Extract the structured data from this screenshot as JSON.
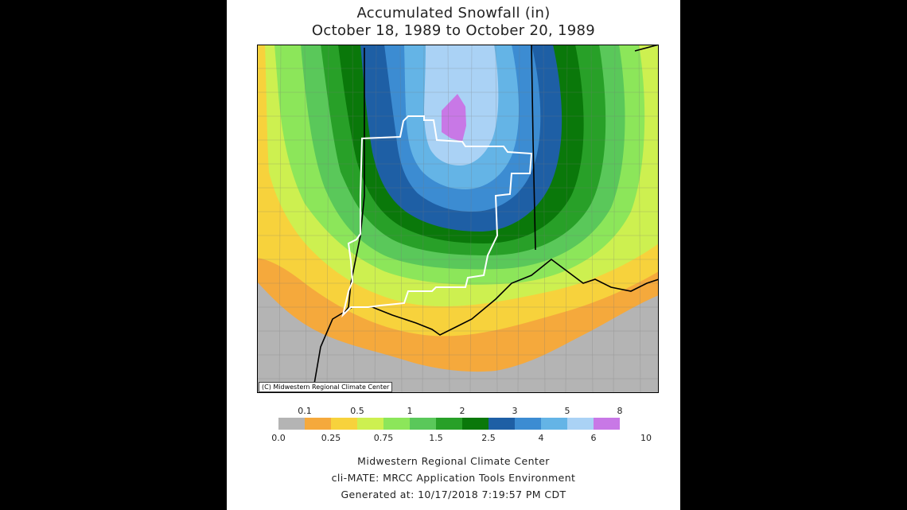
{
  "title": {
    "line1": "Accumulated Snowfall (in)",
    "line2": "October 18, 1989 to October 20, 1989"
  },
  "map": {
    "credit": "(C) Midwestern Regional Climate Center"
  },
  "legend": {
    "top_labels": [
      "0.1",
      "0.5",
      "1",
      "2",
      "3",
      "5",
      "8"
    ],
    "bottom_labels": [
      "0.0",
      "0.25",
      "0.75",
      "1.5",
      "2.5",
      "4",
      "6",
      "10"
    ],
    "colors": [
      "#b4b4b4",
      "#f5a93c",
      "#f7d23c",
      "#cdf050",
      "#8ce65a",
      "#5ac85a",
      "#28a028",
      "#0a780a",
      "#1e5fa5",
      "#3c8cd2",
      "#64b4e6",
      "#aad2f5",
      "#c878e6"
    ]
  },
  "footer": {
    "line1": "Midwestern Regional Climate Center",
    "line2": "cli-MATE: MRCC Application Tools Environment",
    "line3": "Generated at: 10/17/2018 7:19:57 PM CDT"
  }
}
